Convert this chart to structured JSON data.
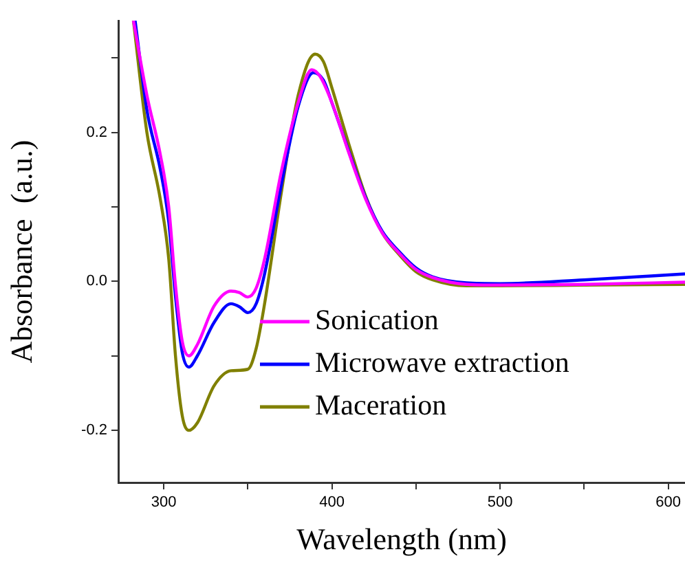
{
  "chart_data": {
    "type": "line",
    "xlabel": "Wavelength (nm)",
    "ylabel": "Absorbance  (a.u.)",
    "xlim": [
      273,
      610
    ],
    "xticks": [
      300,
      {
        "value": 350,
        "label": null
      },
      400,
      {
        "value": 450,
        "label": null
      },
      500,
      {
        "value": 550,
        "label": null
      },
      600
    ],
    "ylim": [
      -0.27,
      0.35
    ],
    "yticks": [
      -0.2,
      {
        "value": -0.1,
        "label": null
      },
      {
        "value": 0,
        "label": "0.0"
      },
      {
        "value": 0.1,
        "label": null
      },
      0.2,
      {
        "value": 0.3,
        "label": null
      }
    ],
    "grid": false,
    "legend": "bottom",
    "marker": "none",
    "line_style": "solid",
    "series": [
      {
        "name": "Sonication",
        "color": "#ff00ff",
        "x": [
          282,
          290,
          298,
          303,
          307,
          311,
          315,
          320,
          330,
          340,
          345,
          350,
          355,
          360,
          370,
          380,
          388,
          393,
          400,
          410,
          420,
          430,
          440,
          450,
          460,
          480,
          500,
          550,
          610
        ],
        "values": [
          0.35,
          0.25,
          0.17,
          0.1,
          -0.005,
          -0.08,
          -0.1,
          -0.085,
          -0.033,
          -0.013,
          -0.015,
          -0.021,
          -0.009,
          0.03,
          0.148,
          0.24,
          0.284,
          0.275,
          0.24,
          0.173,
          0.111,
          0.065,
          0.038,
          0.016,
          0.005,
          -0.004,
          -0.005,
          -0.004,
          -0.001
        ]
      },
      {
        "name": "Microwave extraction",
        "color": "#0000ff",
        "x": [
          283,
          290,
          298,
          303,
          307,
          311,
          315,
          320,
          330,
          340,
          345,
          350,
          355,
          360,
          370,
          380,
          389,
          395,
          400,
          410,
          420,
          430,
          440,
          450,
          460,
          480,
          500,
          550,
          610
        ],
        "values": [
          0.35,
          0.23,
          0.15,
          0.08,
          -0.02,
          -0.095,
          -0.115,
          -0.1,
          -0.055,
          -0.03,
          -0.034,
          -0.042,
          -0.03,
          0.01,
          0.13,
          0.235,
          0.28,
          0.27,
          0.24,
          0.175,
          0.113,
          0.067,
          0.04,
          0.018,
          0.006,
          -0.002,
          -0.003,
          0.002,
          0.01
        ]
      },
      {
        "name": "Maceration",
        "color": "#808000",
        "x": [
          282,
          290,
          298,
          303,
          307,
          311,
          315,
          320,
          330,
          340,
          350,
          355,
          360,
          370,
          380,
          390,
          395,
          400,
          410,
          420,
          430,
          440,
          450,
          460,
          480,
          500,
          550,
          610
        ],
        "values": [
          0.35,
          0.2,
          0.11,
          0.03,
          -0.1,
          -0.18,
          -0.2,
          -0.19,
          -0.14,
          -0.12,
          -0.118,
          -0.09,
          -0.03,
          0.12,
          0.25,
          0.305,
          0.295,
          0.26,
          0.185,
          0.115,
          0.065,
          0.036,
          0.013,
          0.002,
          -0.006,
          -0.006,
          -0.005,
          -0.004
        ]
      }
    ]
  }
}
